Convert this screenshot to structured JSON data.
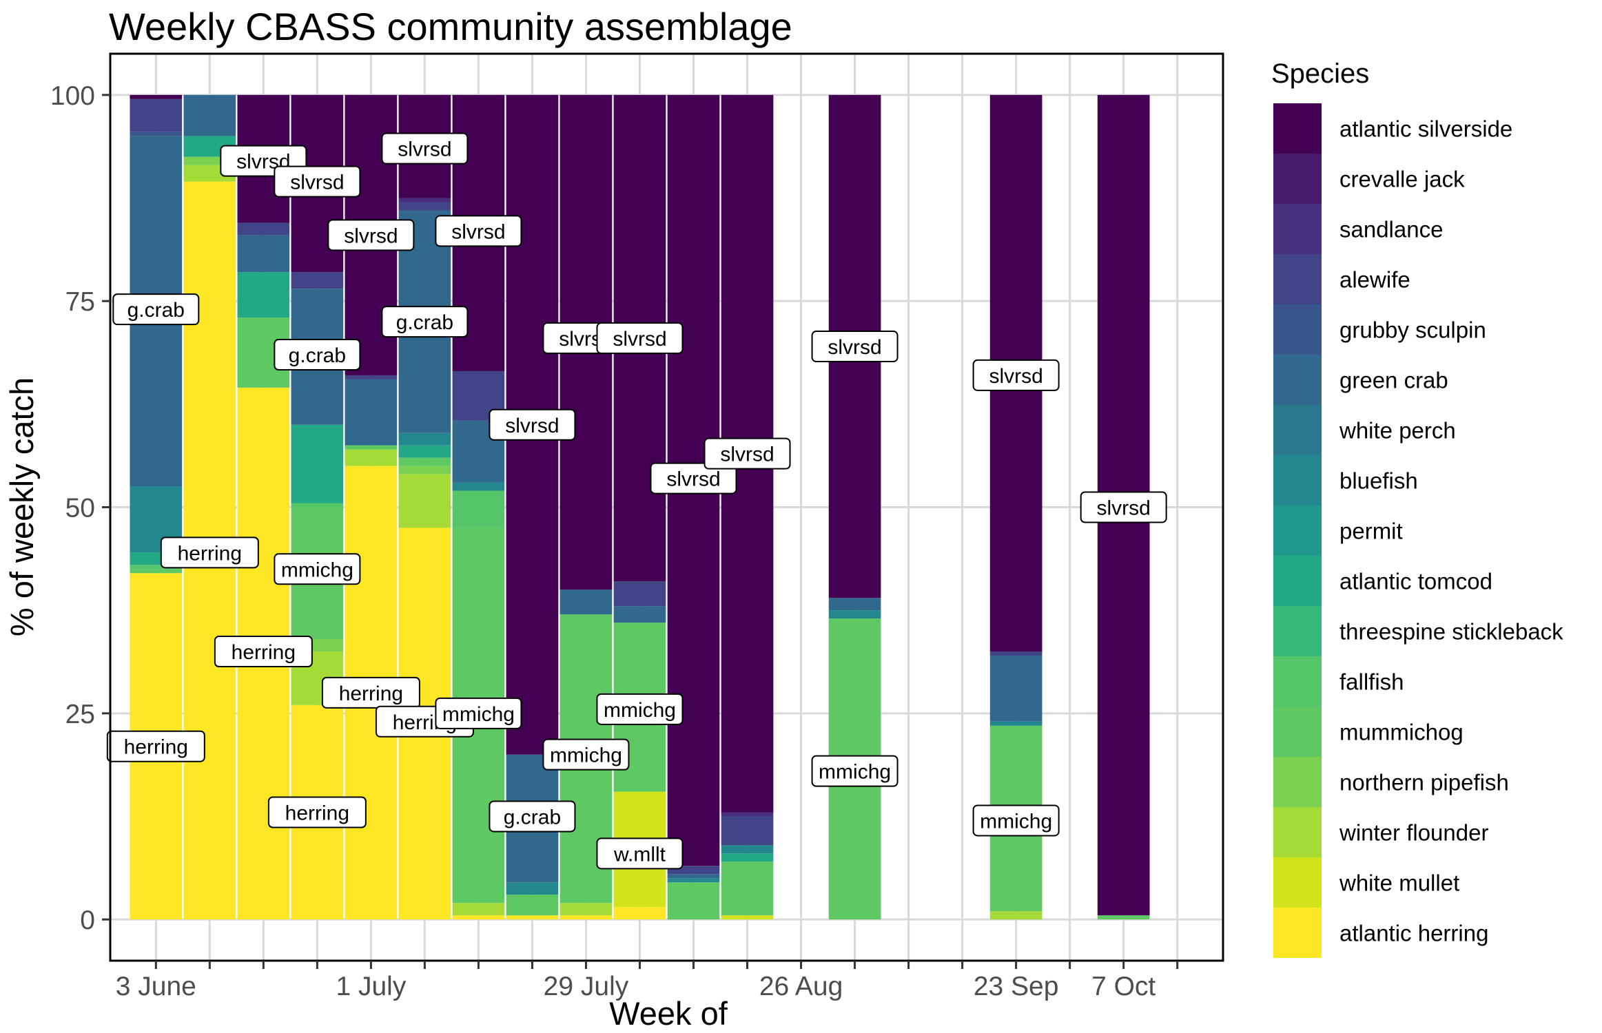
{
  "chart_data": {
    "type": "bar",
    "stacked": true,
    "title": "Weekly CBASS community assemblage",
    "xlabel": "Week of",
    "ylabel": "% of weekly catch",
    "ylim": [
      -5,
      105
    ],
    "yticks": [
      0,
      25,
      50,
      75,
      100
    ],
    "grid": true,
    "legend_title": "Species",
    "legend_position": "right",
    "x_tick_labels": [
      "3 June",
      "1 July",
      "29 July",
      "26 Aug",
      "23 Sep",
      "7 Oct"
    ],
    "x_label_weeks": [
      1,
      5,
      9,
      13,
      17,
      19
    ],
    "n_weeks": 20,
    "species": [
      {
        "name": "atlantic silverside",
        "color": "#440154"
      },
      {
        "name": "crevalle jack",
        "color": "#481A6C"
      },
      {
        "name": "sandlance",
        "color": "#472F7D"
      },
      {
        "name": "alewife",
        "color": "#414487"
      },
      {
        "name": "grubby sculpin",
        "color": "#39568C"
      },
      {
        "name": "green crab",
        "color": "#31688E"
      },
      {
        "name": "white perch",
        "color": "#2A788E"
      },
      {
        "name": "bluefish",
        "color": "#23888E"
      },
      {
        "name": "permit",
        "color": "#1F988B"
      },
      {
        "name": "atlantic tomcod",
        "color": "#22A884"
      },
      {
        "name": "threespine stickleback",
        "color": "#35B779"
      },
      {
        "name": "fallfish",
        "color": "#54C568"
      },
      {
        "name": "mummichog",
        "color": "#5EC962"
      },
      {
        "name": "northern pipefish",
        "color": "#7AD151"
      },
      {
        "name": "winter flounder",
        "color": "#A5DB36"
      },
      {
        "name": "white mullet",
        "color": "#D2E21B"
      },
      {
        "name": "atlantic herring",
        "color": "#FDE725"
      }
    ],
    "weeks": [
      {
        "week": 1,
        "segments": [
          {
            "species": "atlantic herring",
            "value": 42
          },
          {
            "species": "mummichog",
            "value": 0.5
          },
          {
            "species": "fallfish",
            "value": 0.5
          },
          {
            "species": "atlantic tomcod",
            "value": 1.5
          },
          {
            "species": "bluefish",
            "value": 8
          },
          {
            "species": "green crab",
            "value": 42.5
          },
          {
            "species": "grubby sculpin",
            "value": 0.5
          },
          {
            "species": "alewife",
            "value": 4
          },
          {
            "species": "atlantic silverside",
            "value": 0.5
          }
        ]
      },
      {
        "week": 2,
        "segments": [
          {
            "species": "atlantic herring",
            "value": 89.5
          },
          {
            "species": "winter flounder",
            "value": 2
          },
          {
            "species": "northern pipefish",
            "value": 1
          },
          {
            "species": "atlantic tomcod",
            "value": 2.5
          },
          {
            "species": "green crab",
            "value": 5
          }
        ]
      },
      {
        "week": 3,
        "segments": [
          {
            "species": "atlantic herring",
            "value": 64.5
          },
          {
            "species": "mummichog",
            "value": 8.5
          },
          {
            "species": "atlantic tomcod",
            "value": 5.5
          },
          {
            "species": "green crab",
            "value": 4.5
          },
          {
            "species": "alewife",
            "value": 1.5
          },
          {
            "species": "atlantic silverside",
            "value": 15.5
          }
        ]
      },
      {
        "week": 4,
        "segments": [
          {
            "species": "atlantic herring",
            "value": 26
          },
          {
            "species": "winter flounder",
            "value": 6.5
          },
          {
            "species": "northern pipefish",
            "value": 1.5
          },
          {
            "species": "mummichog",
            "value": 16
          },
          {
            "species": "fallfish",
            "value": 0.5
          },
          {
            "species": "atlantic tomcod",
            "value": 9.5
          },
          {
            "species": "green crab",
            "value": 16.5
          },
          {
            "species": "alewife",
            "value": 2
          },
          {
            "species": "atlantic silverside",
            "value": 21.5
          }
        ]
      },
      {
        "week": 5,
        "segments": [
          {
            "species": "atlantic herring",
            "value": 55
          },
          {
            "species": "winter flounder",
            "value": 2
          },
          {
            "species": "mummichog",
            "value": 0.5
          },
          {
            "species": "green crab",
            "value": 8
          },
          {
            "species": "alewife",
            "value": 0.5
          },
          {
            "species": "atlantic silverside",
            "value": 34
          }
        ]
      },
      {
        "week": 6,
        "segments": [
          {
            "species": "atlantic herring",
            "value": 47.5
          },
          {
            "species": "winter flounder",
            "value": 6.5
          },
          {
            "species": "northern pipefish",
            "value": 1
          },
          {
            "species": "mummichog",
            "value": 1
          },
          {
            "species": "atlantic tomcod",
            "value": 1.5
          },
          {
            "species": "bluefish",
            "value": 1.5
          },
          {
            "species": "green crab",
            "value": 27
          },
          {
            "species": "alewife",
            "value": 1
          },
          {
            "species": "sandlance",
            "value": 0.5
          },
          {
            "species": "atlantic silverside",
            "value": 12.5
          }
        ]
      },
      {
        "week": 7,
        "segments": [
          {
            "species": "atlantic herring",
            "value": 0.5
          },
          {
            "species": "winter flounder",
            "value": 1.5
          },
          {
            "species": "mummichog",
            "value": 45.5
          },
          {
            "species": "fallfish",
            "value": 4.5
          },
          {
            "species": "bluefish",
            "value": 1
          },
          {
            "species": "green crab",
            "value": 7.5
          },
          {
            "species": "alewife",
            "value": 6
          },
          {
            "species": "atlantic silverside",
            "value": 33.5
          }
        ]
      },
      {
        "week": 8,
        "segments": [
          {
            "species": "atlantic herring",
            "value": 0.5
          },
          {
            "species": "mummichog",
            "value": 2.5
          },
          {
            "species": "bluefish",
            "value": 1.5
          },
          {
            "species": "green crab",
            "value": 15.5
          },
          {
            "species": "atlantic silverside",
            "value": 80
          }
        ]
      },
      {
        "week": 9,
        "segments": [
          {
            "species": "atlantic herring",
            "value": 0.5
          },
          {
            "species": "winter flounder",
            "value": 1.5
          },
          {
            "species": "mummichog",
            "value": 35
          },
          {
            "species": "green crab",
            "value": 3
          },
          {
            "species": "atlantic silverside",
            "value": 60
          }
        ]
      },
      {
        "week": 10,
        "segments": [
          {
            "species": "atlantic herring",
            "value": 1.5
          },
          {
            "species": "white mullet",
            "value": 14
          },
          {
            "species": "mummichog",
            "value": 20.5
          },
          {
            "species": "green crab",
            "value": 2
          },
          {
            "species": "alewife",
            "value": 3
          },
          {
            "species": "atlantic silverside",
            "value": 59
          }
        ]
      },
      {
        "week": 11,
        "segments": [
          {
            "species": "mummichog",
            "value": 4.5
          },
          {
            "species": "bluefish",
            "value": 0.5
          },
          {
            "species": "green crab",
            "value": 0.5
          },
          {
            "species": "alewife",
            "value": 1
          },
          {
            "species": "atlantic silverside",
            "value": 93.5
          }
        ]
      },
      {
        "week": 12,
        "segments": [
          {
            "species": "white mullet",
            "value": 0.5
          },
          {
            "species": "mummichog",
            "value": 6.5
          },
          {
            "species": "atlantic tomcod",
            "value": 1
          },
          {
            "species": "bluefish",
            "value": 1
          },
          {
            "species": "alewife",
            "value": 3.5
          },
          {
            "species": "sandlance",
            "value": 0.5
          },
          {
            "species": "atlantic silverside",
            "value": 87
          }
        ]
      },
      {
        "week": 14,
        "segments": [
          {
            "species": "mummichog",
            "value": 36.5
          },
          {
            "species": "bluefish",
            "value": 1
          },
          {
            "species": "green crab",
            "value": 1.5
          },
          {
            "species": "atlantic silverside",
            "value": 61
          }
        ]
      },
      {
        "week": 17,
        "segments": [
          {
            "species": "winter flounder",
            "value": 1
          },
          {
            "species": "mummichog",
            "value": 22.5
          },
          {
            "species": "bluefish",
            "value": 0.5
          },
          {
            "species": "green crab",
            "value": 8
          },
          {
            "species": "alewife",
            "value": 0.5
          },
          {
            "species": "atlantic silverside",
            "value": 67.5
          }
        ]
      },
      {
        "week": 19,
        "segments": [
          {
            "species": "mummichog",
            "value": 0.5
          },
          {
            "species": "atlantic silverside",
            "value": 99.5
          }
        ]
      }
    ],
    "labels": [
      {
        "week": 1,
        "y": 74,
        "text": "g.crab"
      },
      {
        "week": 1,
        "y": 21,
        "text": "herring"
      },
      {
        "week": 2,
        "y": 44.5,
        "text": "herring"
      },
      {
        "week": 3,
        "y": 92,
        "text": "slvrsd"
      },
      {
        "week": 3,
        "y": 32.5,
        "text": "herring"
      },
      {
        "week": 4,
        "y": 89.5,
        "text": "slvrsd"
      },
      {
        "week": 4,
        "y": 68.5,
        "text": "g.crab"
      },
      {
        "week": 4,
        "y": 42.5,
        "text": "mmichg"
      },
      {
        "week": 4,
        "y": 13,
        "text": "herring"
      },
      {
        "week": 5,
        "y": 83,
        "text": "slvrsd"
      },
      {
        "week": 5,
        "y": 27.5,
        "text": "herring"
      },
      {
        "week": 6,
        "y": 93.5,
        "text": "slvrsd"
      },
      {
        "week": 6,
        "y": 72.5,
        "text": "g.crab"
      },
      {
        "week": 6,
        "y": 24,
        "text": "herring"
      },
      {
        "week": 7,
        "y": 83.5,
        "text": "slvrsd"
      },
      {
        "week": 7,
        "y": 25,
        "text": "mmichg"
      },
      {
        "week": 8,
        "y": 60,
        "text": "slvrsd"
      },
      {
        "week": 8,
        "y": 12.5,
        "text": "g.crab"
      },
      {
        "week": 9,
        "y": 70.5,
        "text": "slvrsd"
      },
      {
        "week": 9,
        "y": 20,
        "text": "mmichg"
      },
      {
        "week": 10,
        "y": 70.5,
        "text": "slvrsd"
      },
      {
        "week": 10,
        "y": 25.5,
        "text": "mmichg"
      },
      {
        "week": 10,
        "y": 8,
        "text": "w.mllt"
      },
      {
        "week": 11,
        "y": 53.5,
        "text": "slvrsd"
      },
      {
        "week": 12,
        "y": 56.5,
        "text": "slvrsd"
      },
      {
        "week": 14,
        "y": 69.5,
        "text": "slvrsd"
      },
      {
        "week": 14,
        "y": 18,
        "text": "mmichg"
      },
      {
        "week": 17,
        "y": 66,
        "text": "slvrsd"
      },
      {
        "week": 17,
        "y": 12,
        "text": "mmichg"
      },
      {
        "week": 19,
        "y": 50,
        "text": "slvrsd"
      }
    ]
  }
}
